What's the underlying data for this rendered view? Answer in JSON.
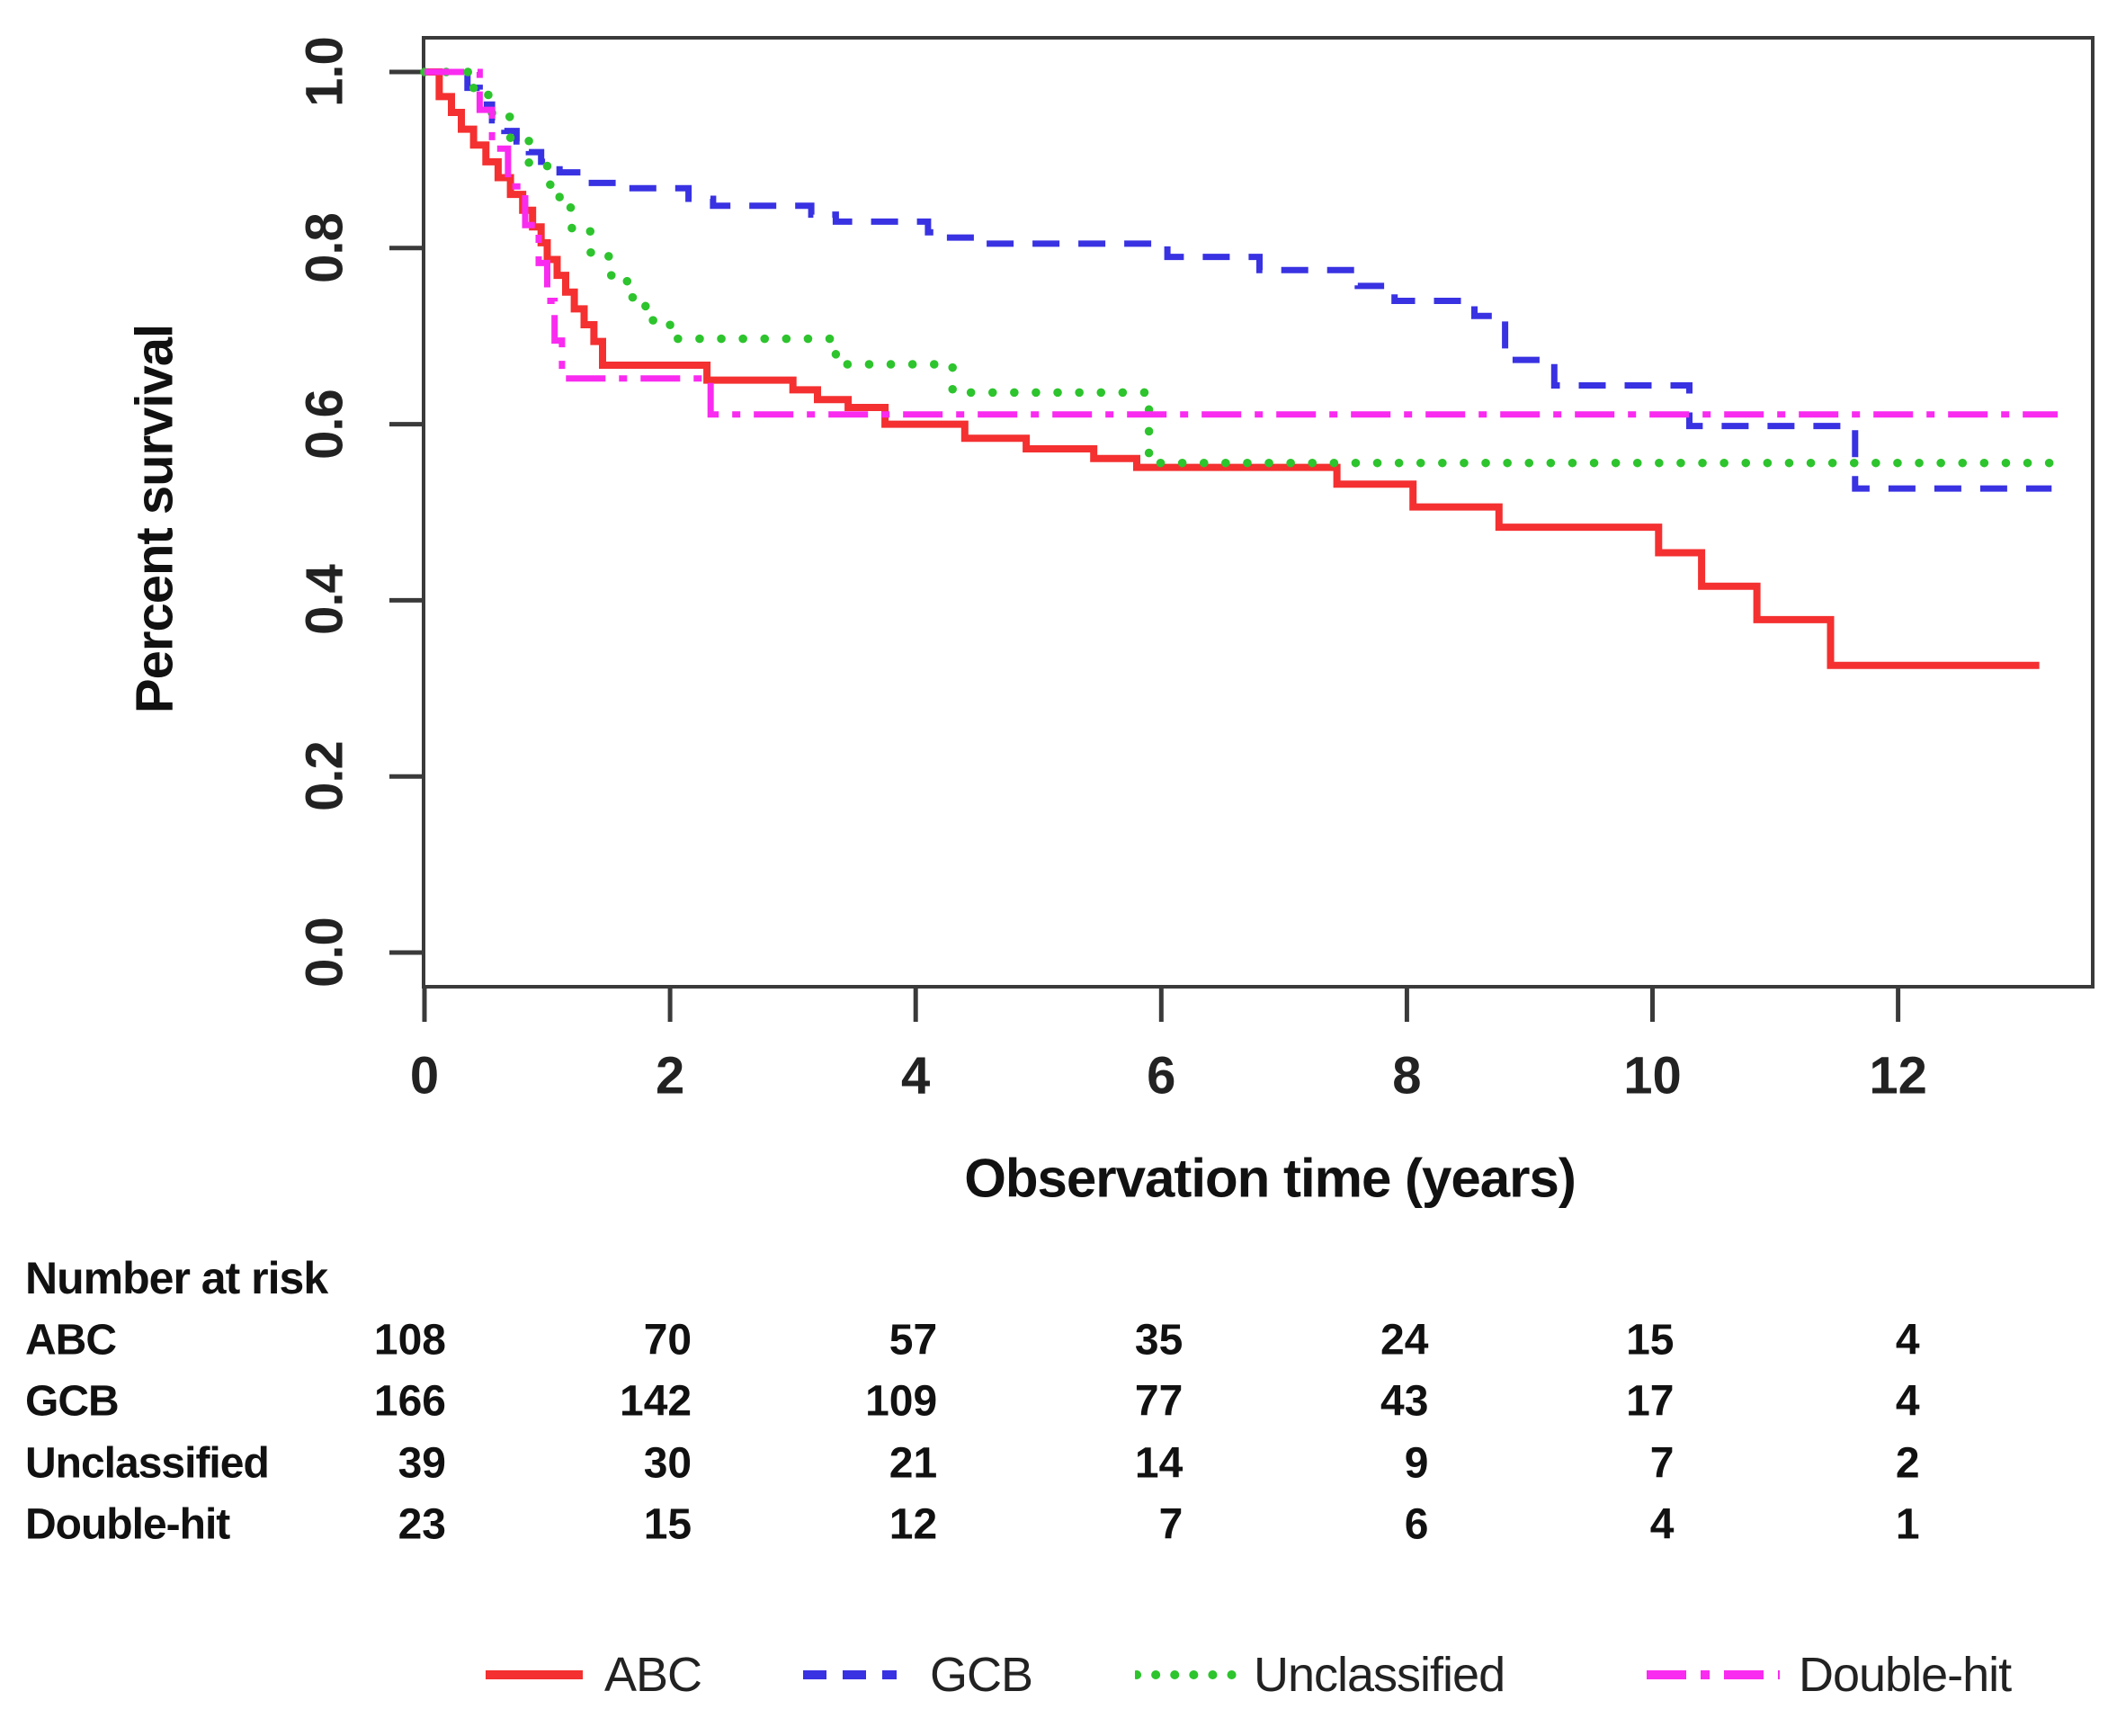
{
  "chart_data": {
    "type": "line",
    "subtype": "kaplan-meier-step-curves",
    "title": "",
    "xlabel": "Observation time (years)",
    "ylabel": "Percent survival",
    "xlim": [
      0,
      13.6
    ],
    "ylim": [
      0.0,
      1.0
    ],
    "x_ticks": [
      "0",
      "2",
      "4",
      "6",
      "8",
      "10",
      "12"
    ],
    "x_tick_values": [
      0,
      2,
      4,
      6,
      8,
      10,
      12
    ],
    "y_ticks": [
      "1.0",
      "0.8",
      "0.6",
      "0.4",
      "0.2",
      "0.0"
    ],
    "y_tick_values": [
      1.0,
      0.8,
      0.6,
      0.4,
      0.2,
      0.0
    ],
    "grid": false,
    "legend_position": "bottom",
    "axis_color": "#3a3a3a",
    "series": [
      {
        "name": "ABC",
        "color": "#f43030",
        "line_style": "solid",
        "end_t": 13.15,
        "steps": [
          [
            0,
            1.0
          ],
          [
            0.12,
            0.972
          ],
          [
            0.22,
            0.954
          ],
          [
            0.3,
            0.935
          ],
          [
            0.4,
            0.917
          ],
          [
            0.5,
            0.898
          ],
          [
            0.6,
            0.88
          ],
          [
            0.7,
            0.861
          ],
          [
            0.8,
            0.843
          ],
          [
            0.88,
            0.824
          ],
          [
            0.95,
            0.806
          ],
          [
            1.0,
            0.787
          ],
          [
            1.08,
            0.769
          ],
          [
            1.15,
            0.75
          ],
          [
            1.22,
            0.731
          ],
          [
            1.3,
            0.713
          ],
          [
            1.38,
            0.694
          ],
          [
            1.45,
            0.667
          ],
          [
            2.3,
            0.65
          ],
          [
            3.0,
            0.639
          ],
          [
            3.2,
            0.628
          ],
          [
            3.45,
            0.619
          ],
          [
            3.75,
            0.6
          ],
          [
            4.4,
            0.584
          ],
          [
            4.9,
            0.572
          ],
          [
            5.45,
            0.561
          ],
          [
            5.8,
            0.551
          ],
          [
            7.43,
            0.532
          ],
          [
            8.05,
            0.506
          ],
          [
            8.75,
            0.483
          ],
          [
            10.05,
            0.454
          ],
          [
            10.4,
            0.416
          ],
          [
            10.85,
            0.378
          ],
          [
            11.45,
            0.326
          ]
        ]
      },
      {
        "name": "GCB",
        "color": "#3932e2",
        "line_style": "dashed",
        "end_t": 13.25,
        "steps": [
          [
            0,
            1.0
          ],
          [
            0.35,
            0.982
          ],
          [
            0.45,
            0.963
          ],
          [
            0.55,
            0.945
          ],
          [
            0.65,
            0.933
          ],
          [
            0.75,
            0.921
          ],
          [
            0.85,
            0.909
          ],
          [
            0.95,
            0.898
          ],
          [
            1.1,
            0.886
          ],
          [
            1.3,
            0.874
          ],
          [
            1.6,
            0.868
          ],
          [
            2.15,
            0.856
          ],
          [
            2.35,
            0.848
          ],
          [
            3.15,
            0.838
          ],
          [
            3.35,
            0.83
          ],
          [
            4.1,
            0.818
          ],
          [
            4.25,
            0.812
          ],
          [
            4.55,
            0.805
          ],
          [
            6.05,
            0.79
          ],
          [
            6.8,
            0.775
          ],
          [
            7.6,
            0.757
          ],
          [
            7.9,
            0.74
          ],
          [
            8.55,
            0.723
          ],
          [
            8.8,
            0.673
          ],
          [
            9.2,
            0.644
          ],
          [
            10.3,
            0.598
          ],
          [
            11.65,
            0.527
          ]
        ]
      },
      {
        "name": "Unclassified",
        "color": "#2dc42d",
        "line_style": "dotted",
        "end_t": 13.3,
        "steps": [
          [
            0,
            1.0
          ],
          [
            0.4,
            0.974
          ],
          [
            0.55,
            0.949
          ],
          [
            0.7,
            0.923
          ],
          [
            0.85,
            0.897
          ],
          [
            1.0,
            0.872
          ],
          [
            1.1,
            0.846
          ],
          [
            1.2,
            0.82
          ],
          [
            1.35,
            0.795
          ],
          [
            1.5,
            0.769
          ],
          [
            1.65,
            0.744
          ],
          [
            1.8,
            0.718
          ],
          [
            2.0,
            0.697
          ],
          [
            3.35,
            0.668
          ],
          [
            4.3,
            0.636
          ],
          [
            5.9,
            0.556
          ]
        ]
      },
      {
        "name": "Double-hit",
        "color": "#f92bf0",
        "line_style": "dashdot",
        "end_t": 13.3,
        "steps": [
          [
            0,
            1.0
          ],
          [
            0.45,
            0.957
          ],
          [
            0.55,
            0.913
          ],
          [
            0.68,
            0.87
          ],
          [
            0.82,
            0.826
          ],
          [
            0.93,
            0.783
          ],
          [
            1.0,
            0.74
          ],
          [
            1.06,
            0.695
          ],
          [
            1.12,
            0.652
          ],
          [
            2.33,
            0.611
          ]
        ]
      }
    ],
    "number_at_risk": {
      "header": "Number at risk",
      "time_points": [
        0,
        2,
        4,
        6,
        8,
        10,
        12
      ],
      "rows": [
        {
          "label": "ABC",
          "counts": [
            108,
            70,
            57,
            35,
            24,
            15,
            4
          ]
        },
        {
          "label": "GCB",
          "counts": [
            166,
            142,
            109,
            77,
            43,
            17,
            4
          ]
        },
        {
          "label": "Unclassified",
          "counts": [
            39,
            30,
            21,
            14,
            9,
            7,
            2
          ]
        },
        {
          "label": "Double-hit",
          "counts": [
            23,
            15,
            12,
            7,
            6,
            4,
            1
          ]
        }
      ]
    },
    "legend": {
      "items": [
        {
          "label": "ABC"
        },
        {
          "label": "GCB"
        },
        {
          "label": "Unclassified"
        },
        {
          "label": "Double-hit"
        }
      ]
    }
  }
}
